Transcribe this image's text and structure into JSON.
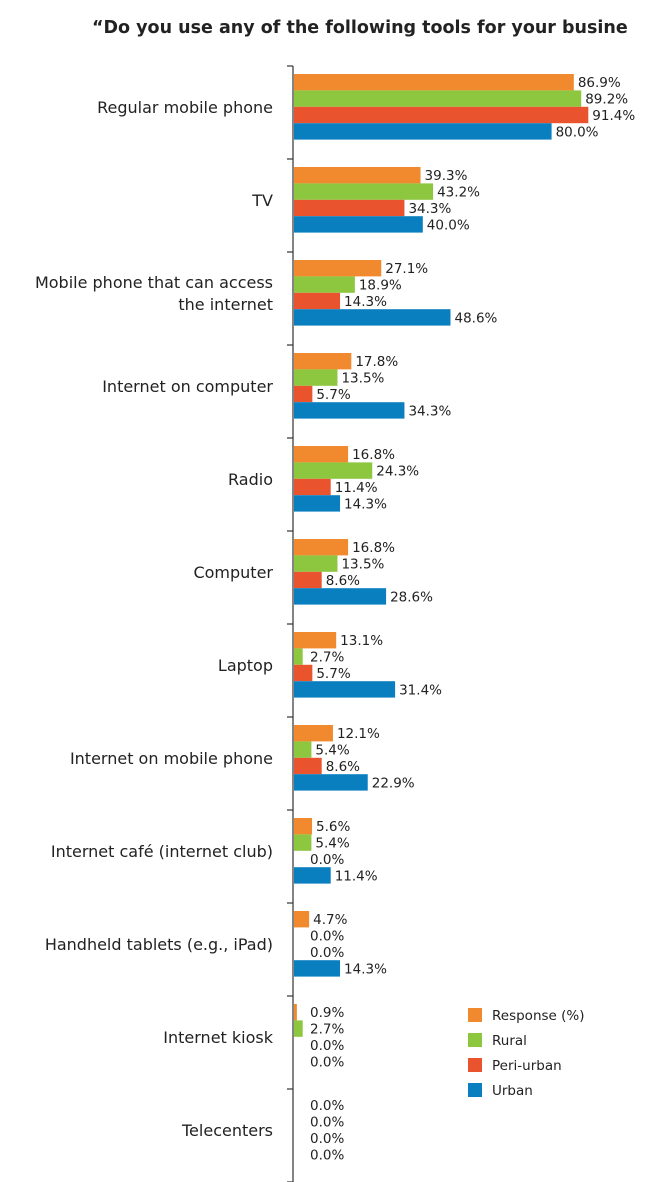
{
  "chart_data": {
    "type": "bar",
    "orientation": "horizontal",
    "title": "“Do you use any of the following tools for your busine",
    "categories": [
      "Regular mobile phone",
      "TV",
      "Mobile phone that can access\nthe internet",
      "Internet on computer",
      "Radio",
      "Computer",
      "Laptop",
      "Internet on mobile phone",
      "Internet café (internet club)",
      "Handheld tablets (e.g., iPad)",
      "Internet kiosk",
      "Telecenters"
    ],
    "series": [
      {
        "name": "Response (%)",
        "color": "#f18a2e",
        "values": [
          86.9,
          39.3,
          27.1,
          17.8,
          16.8,
          16.8,
          13.1,
          12.1,
          5.6,
          4.7,
          0.9,
          0.0
        ],
        "labels": [
          "86.9%",
          "39.3%",
          "27.1%",
          "17.8%",
          "16.8%",
          "16.8%",
          "13.1%",
          "12.1%",
          "5.6%",
          "4.7%",
          "0.9%",
          "0.0%"
        ]
      },
      {
        "name": "Rural",
        "color": "#8dc63f",
        "values": [
          89.2,
          43.2,
          18.9,
          13.5,
          24.3,
          13.5,
          2.7,
          5.4,
          5.4,
          0.0,
          2.7,
          0.0
        ],
        "labels": [
          "89.2%",
          "43.2%",
          "18.9%",
          "13.5%",
          "24.3%",
          "13.5%",
          "2.7%",
          "5.4%",
          "5.4%",
          "0.0%",
          "2.7%",
          "0.0%"
        ]
      },
      {
        "name": "Peri-urban",
        "color": "#e9542f",
        "values": [
          91.4,
          34.3,
          14.3,
          5.7,
          11.4,
          8.6,
          5.7,
          8.6,
          0.0,
          0.0,
          0.0,
          0.0
        ],
        "labels": [
          "91.4%",
          "34.3%",
          "14.3%",
          "5.7%",
          "11.4%",
          "8.6%",
          "5.7%",
          "8.6%",
          "0.0%",
          "0.0%",
          "0.0%",
          "0.0%"
        ]
      },
      {
        "name": "Urban",
        "color": "#0a7fc0",
        "values": [
          80.0,
          40.0,
          48.6,
          34.3,
          14.3,
          28.6,
          31.4,
          22.9,
          11.4,
          14.3,
          0.0,
          0.0
        ],
        "labels": [
          "80.0%",
          "40.0%",
          "48.6%",
          "34.3%",
          "14.3%",
          "28.6%",
          "31.4%",
          "22.9%",
          "11.4%",
          "14.3%",
          "0.0%",
          "0.0%"
        ]
      }
    ],
    "xlim": [
      0,
      100
    ],
    "grid": false,
    "legend_position": "bottom-right"
  }
}
